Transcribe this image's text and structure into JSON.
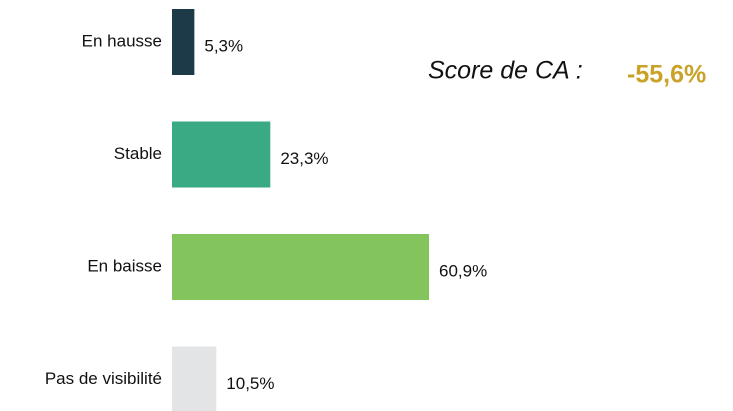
{
  "chart_data": {
    "type": "hbar",
    "categories": [
      "En hausse",
      "Stable",
      "En baisse",
      "Pas de visibilité"
    ],
    "values": [
      5.3,
      23.3,
      60.9,
      10.5
    ],
    "value_labels": [
      "5,3%",
      "23,3%",
      "60,9%",
      "10,5%"
    ],
    "colors": [
      "#1c3a47",
      "#3aaa85",
      "#84c45c",
      "#e3e4e6"
    ],
    "xlim": [
      0,
      100
    ],
    "annotations": {
      "score_label": "Score de CA :",
      "score_value": "-55,6%"
    }
  }
}
